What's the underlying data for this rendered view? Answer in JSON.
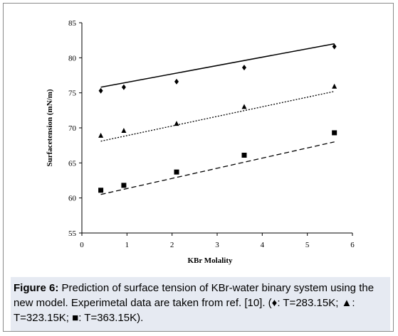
{
  "chart_data": {
    "type": "scatter",
    "xlabel": "KBr Molality",
    "ylabel": "Surfacetension (mN/m)",
    "xlim": [
      0,
      6
    ],
    "ylim": [
      55,
      85
    ],
    "xticks": [
      "0",
      "1",
      "2",
      "3",
      "4",
      "5",
      "6"
    ],
    "yticks": [
      "55",
      "60",
      "65",
      "70",
      "75",
      "80",
      "85"
    ],
    "grid": false,
    "series": [
      {
        "marker": "diamond",
        "color": "#000000",
        "points": [
          [
            0.42,
            75.3
          ],
          [
            0.93,
            75.8
          ],
          [
            2.1,
            76.6
          ],
          [
            3.6,
            78.6
          ],
          [
            5.6,
            81.6
          ]
        ],
        "model_line": {
          "style": "solid",
          "points": [
            [
              0.42,
              75.8
            ],
            [
              5.6,
              82.0
            ]
          ]
        }
      },
      {
        "marker": "triangle",
        "color": "#000000",
        "points": [
          [
            0.42,
            68.9
          ],
          [
            0.93,
            69.6
          ],
          [
            2.1,
            70.6
          ],
          [
            3.6,
            73.0
          ],
          [
            5.6,
            75.9
          ]
        ],
        "model_line": {
          "style": "dotted",
          "points": [
            [
              0.42,
              68.1
            ],
            [
              5.6,
              75.2
            ]
          ]
        }
      },
      {
        "marker": "square",
        "color": "#000000",
        "points": [
          [
            0.42,
            61.1
          ],
          [
            0.93,
            61.8
          ],
          [
            2.1,
            63.7
          ],
          [
            3.6,
            66.1
          ],
          [
            5.6,
            69.3
          ]
        ],
        "model_line": {
          "style": "dashed",
          "points": [
            [
              0.42,
              60.5
            ],
            [
              5.6,
              68.0
            ]
          ]
        }
      }
    ]
  },
  "caption": {
    "label": "Figure 6:",
    "text_1": " Prediction of surface tension of KBr-water binary system using the new model. Experimetal data are taken from ref. [10]. (",
    "sym1": "♦",
    "text_2": ": T=283.15K; ",
    "sym2": "▲",
    "text_3": ": T=323.15K; ",
    "sym3": "■",
    "text_4": ": T=363.15K)."
  }
}
